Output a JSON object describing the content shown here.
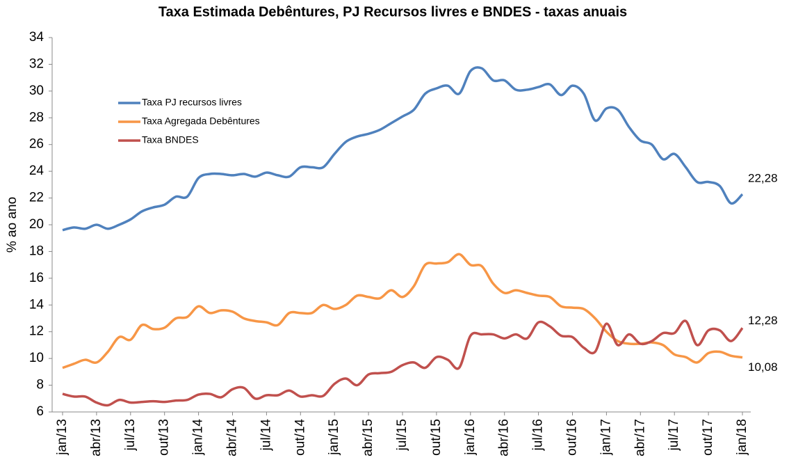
{
  "chart_data": {
    "type": "line",
    "title": "Taxa Estimada Debêntures, PJ Recursos livres e BNDES - taxas anuais",
    "y_label": "% ao ano",
    "categories": [
      "jan/13",
      null,
      null,
      "abr/13",
      null,
      null,
      "jul/13",
      null,
      null,
      "out/13",
      null,
      null,
      "jan/14",
      null,
      null,
      "abr/14",
      null,
      null,
      "jul/14",
      null,
      null,
      "out/14",
      null,
      null,
      "jan/15",
      null,
      null,
      "abr/15",
      null,
      null,
      "jul/15",
      null,
      null,
      "out/15",
      null,
      null,
      "jan/16",
      null,
      null,
      "abr/16",
      null,
      null,
      "jul/16",
      null,
      null,
      "out/16",
      null,
      null,
      "jan/17",
      null,
      null,
      "abr/17",
      null,
      null,
      "jul/17",
      null,
      null,
      "out/17",
      null,
      null,
      "jan/18"
    ],
    "series": [
      {
        "name": "Taxa PJ recursos livres",
        "color": "#4f81bd",
        "values": [
          19.6,
          19.8,
          19.7,
          20.0,
          19.7,
          20.0,
          20.4,
          21.0,
          21.3,
          21.5,
          22.1,
          22.1,
          23.5,
          23.8,
          23.8,
          23.7,
          23.8,
          23.6,
          23.9,
          23.7,
          23.6,
          24.3,
          24.3,
          24.3,
          25.3,
          26.2,
          26.6,
          26.8,
          27.1,
          27.6,
          28.1,
          28.6,
          29.8,
          30.2,
          30.4,
          29.8,
          31.5,
          31.7,
          30.8,
          30.8,
          30.1,
          30.1,
          30.3,
          30.5,
          29.7,
          30.4,
          29.8,
          27.8,
          28.7,
          28.6,
          27.3,
          26.3,
          26.0,
          24.9,
          25.3,
          24.3,
          23.2,
          23.2,
          22.9,
          21.6,
          22.28
        ],
        "value_labels": [
          null,
          null,
          null,
          null,
          null,
          null,
          null,
          null,
          null,
          null,
          null,
          null,
          null,
          null,
          null,
          null,
          null,
          null,
          null,
          null,
          null,
          null,
          null,
          null,
          null,
          null,
          null,
          null,
          null,
          null,
          null,
          null,
          null,
          null,
          null,
          null,
          null,
          null,
          null,
          null,
          null,
          null,
          null,
          null,
          null,
          null,
          null,
          null,
          null,
          null,
          null,
          null,
          null,
          null,
          null,
          null,
          null,
          null,
          null,
          null,
          "22,28"
        ]
      },
      {
        "name": "Taxa Agregada Debêntures",
        "color": "#f79646",
        "values": [
          9.3,
          9.6,
          9.9,
          9.7,
          10.5,
          11.6,
          11.4,
          12.5,
          12.2,
          12.3,
          13.0,
          13.1,
          13.9,
          13.4,
          13.6,
          13.5,
          13.0,
          12.8,
          12.7,
          12.5,
          13.4,
          13.4,
          13.4,
          14.0,
          13.7,
          14.0,
          14.7,
          14.6,
          14.5,
          15.1,
          14.6,
          15.4,
          17.0,
          17.1,
          17.2,
          17.8,
          17.0,
          16.9,
          15.6,
          14.9,
          15.1,
          14.9,
          14.7,
          14.6,
          13.9,
          13.8,
          13.7,
          13.0,
          12.0,
          11.3,
          11.1,
          11.1,
          11.2,
          11.0,
          10.3,
          10.1,
          9.7,
          10.4,
          10.5,
          10.2,
          10.08
        ],
        "value_labels": [
          null,
          null,
          null,
          null,
          null,
          null,
          null,
          null,
          null,
          null,
          null,
          null,
          null,
          null,
          null,
          null,
          null,
          null,
          null,
          null,
          null,
          null,
          null,
          null,
          null,
          null,
          null,
          null,
          null,
          null,
          null,
          null,
          null,
          null,
          null,
          null,
          null,
          null,
          null,
          null,
          null,
          null,
          null,
          null,
          null,
          null,
          null,
          null,
          null,
          null,
          null,
          null,
          null,
          null,
          null,
          null,
          null,
          null,
          null,
          null,
          "10,08"
        ]
      },
      {
        "name": "Taxa BNDES",
        "color": "#c0504d",
        "values": [
          7.35,
          7.15,
          7.15,
          6.7,
          6.5,
          6.9,
          6.7,
          6.75,
          6.8,
          6.75,
          6.85,
          6.9,
          7.3,
          7.35,
          7.1,
          7.7,
          7.8,
          7.0,
          7.25,
          7.25,
          7.6,
          7.15,
          7.25,
          7.2,
          8.1,
          8.5,
          8.0,
          8.8,
          8.9,
          9.0,
          9.5,
          9.7,
          9.3,
          10.1,
          9.9,
          9.3,
          11.7,
          11.8,
          11.8,
          11.5,
          11.8,
          11.5,
          12.7,
          12.4,
          11.7,
          11.6,
          10.8,
          10.5,
          12.6,
          11.0,
          11.8,
          11.1,
          11.3,
          11.9,
          11.9,
          12.8,
          11.0,
          12.1,
          12.1,
          11.3,
          12.28
        ],
        "value_labels": [
          null,
          null,
          null,
          null,
          null,
          null,
          null,
          null,
          null,
          null,
          null,
          null,
          null,
          null,
          null,
          null,
          null,
          null,
          null,
          null,
          null,
          null,
          null,
          null,
          null,
          null,
          null,
          null,
          null,
          null,
          null,
          null,
          null,
          null,
          null,
          null,
          null,
          null,
          null,
          null,
          null,
          null,
          null,
          null,
          null,
          null,
          null,
          null,
          null,
          null,
          null,
          null,
          null,
          null,
          null,
          null,
          null,
          null,
          null,
          null,
          "12,28"
        ]
      }
    ],
    "ylim": [
      6,
      34
    ],
    "yticks": [
      6,
      8,
      10,
      12,
      14,
      16,
      18,
      20,
      22,
      24,
      26,
      28,
      30,
      32,
      34
    ],
    "grid": false,
    "legend": "upper-left"
  }
}
